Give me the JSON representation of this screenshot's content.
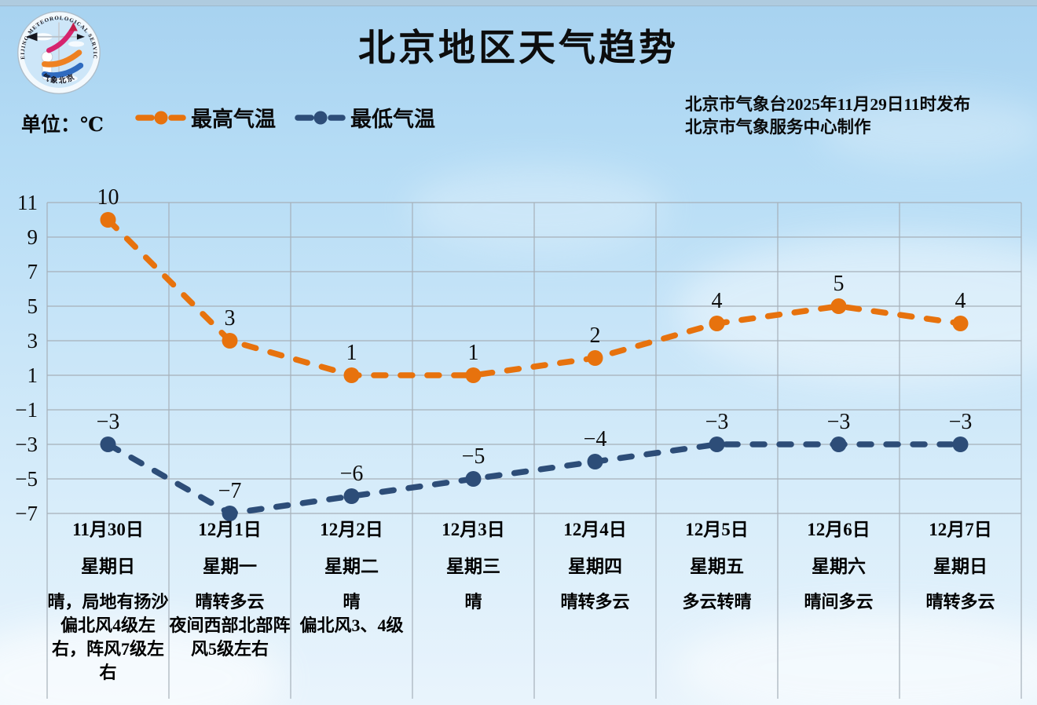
{
  "header": {
    "title": "北京地区天气趋势",
    "unit_label": "单位：℃",
    "issued_line1": "北京市气象台2025年11月29日11时发布",
    "issued_line2": "北京市气象服务中心制作",
    "logo_top_text": "BEIJING METEOROLOGICAL SERVICE",
    "logo_bottom_text": "气象北京"
  },
  "legend": {
    "items": [
      {
        "label": "最高气温",
        "color": "#e7720d"
      },
      {
        "label": "最低气温",
        "color": "#2d4d78"
      }
    ]
  },
  "colors": {
    "max_line": "#e7720d",
    "min_line": "#2d4d78",
    "grid": "#a6b0b9",
    "label_text": "#0d0d0d"
  },
  "chart_data": {
    "type": "line",
    "title": "北京地区天气趋势",
    "ylabel": "℃",
    "ylim": [
      -7,
      11
    ],
    "y_ticks": [
      11,
      9,
      7,
      5,
      3,
      1,
      -1,
      -3,
      -5,
      -7
    ],
    "grid": true,
    "legend_position": "top-left",
    "line_style": "dashed",
    "categories": [
      "11月30日",
      "12月1日",
      "12月2日",
      "12月3日",
      "12月4日",
      "12月5日",
      "12月6日",
      "12月7日"
    ],
    "series": [
      {
        "name": "最高气温",
        "color": "#e7720d",
        "values": [
          10,
          3,
          1,
          1,
          2,
          4,
          5,
          4
        ]
      },
      {
        "name": "最低气温",
        "color": "#2d4d78",
        "values": [
          -3,
          -7,
          -6,
          -5,
          -4,
          -3,
          -3,
          -3
        ]
      }
    ],
    "days": [
      {
        "date": "11月30日",
        "weekday": "星期日",
        "weather": "晴，局地有扬沙\n偏北风4级左右，阵风7级左右"
      },
      {
        "date": "12月1日",
        "weekday": "星期一",
        "weather": "晴转多云\n夜间西部北部阵风5级左右"
      },
      {
        "date": "12月2日",
        "weekday": "星期二",
        "weather": "晴\n偏北风3、4级"
      },
      {
        "date": "12月3日",
        "weekday": "星期三",
        "weather": "晴"
      },
      {
        "date": "12月4日",
        "weekday": "星期四",
        "weather": "晴转多云"
      },
      {
        "date": "12月5日",
        "weekday": "星期五",
        "weather": "多云转晴"
      },
      {
        "date": "12月6日",
        "weekday": "星期六",
        "weather": "晴间多云"
      },
      {
        "date": "12月7日",
        "weekday": "星期日",
        "weather": "晴转多云"
      }
    ]
  }
}
